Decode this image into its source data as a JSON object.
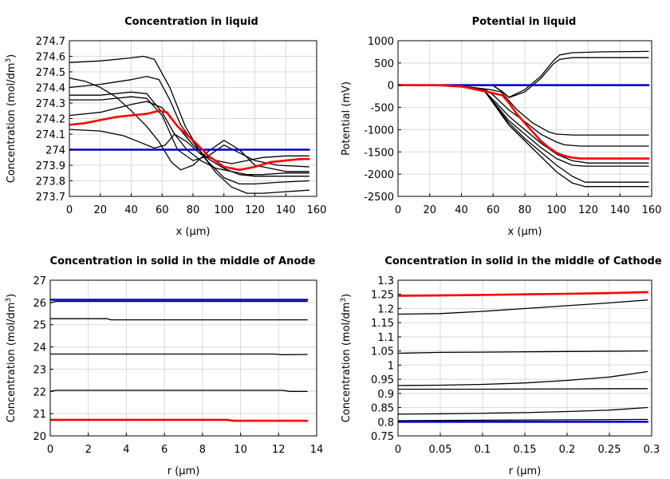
{
  "colors": {
    "initial": "#0000cc",
    "current": "#ff0000",
    "other": "#000000",
    "grid": "#d9d9d9"
  },
  "chart_data": [
    {
      "type": "line",
      "id": "liquid-conc",
      "title": "Concentration in liquid",
      "xlabel": "x (µm)",
      "ylabel_main": "Concentration (mol/dm",
      "ylabel_sup": "3",
      "ylabel_end": ")",
      "xlim": [
        0,
        160
      ],
      "ylim": [
        273.7,
        274.7
      ],
      "xticks": [
        0,
        20,
        40,
        60,
        80,
        100,
        120,
        140,
        160
      ],
      "xtick_labels": [
        "0",
        "20",
        "40",
        "60",
        "80",
        "100",
        "120",
        "140",
        "160"
      ],
      "yticks": [
        273.7,
        273.8,
        273.9,
        274,
        274.1,
        274.2,
        274.3,
        274.4,
        274.5,
        274.6,
        274.7
      ],
      "ytick_labels": [
        "273.7",
        "273.8",
        "273.9",
        "274",
        "274.1",
        "274.2",
        "274.3",
        "274.4",
        "274.5",
        "274.6",
        "274.7"
      ],
      "series": [
        {
          "role": "initial",
          "x": [
            0,
            155
          ],
          "y": [
            274.0,
            274.0
          ]
        },
        {
          "role": "other",
          "x": [
            0,
            20,
            40,
            48,
            55,
            65,
            75,
            85,
            95,
            105,
            115,
            125,
            140,
            155
          ],
          "y": [
            274.56,
            274.57,
            274.59,
            274.6,
            274.58,
            274.4,
            274.15,
            273.98,
            273.85,
            273.76,
            273.72,
            273.72,
            273.73,
            273.74
          ]
        },
        {
          "role": "other",
          "x": [
            0,
            20,
            40,
            50,
            58,
            65,
            72,
            80,
            90,
            100,
            110,
            120,
            135,
            155
          ],
          "y": [
            274.4,
            274.42,
            274.45,
            274.47,
            274.45,
            274.32,
            274.16,
            274.05,
            273.92,
            273.82,
            273.78,
            273.78,
            273.79,
            273.8
          ]
        },
        {
          "role": "other",
          "x": [
            0,
            10,
            20,
            30,
            40,
            50,
            58,
            66,
            72,
            80,
            90,
            100,
            110,
            120,
            140,
            155
          ],
          "y": [
            274.46,
            274.44,
            274.4,
            274.34,
            274.25,
            274.15,
            274.05,
            273.92,
            273.87,
            273.9,
            273.99,
            274.06,
            274.0,
            273.9,
            273.86,
            273.86
          ]
        },
        {
          "role": "other",
          "x": [
            0,
            20,
            40,
            50,
            60,
            70,
            80,
            90,
            100,
            110,
            120,
            135,
            155
          ],
          "y": [
            274.32,
            274.32,
            274.34,
            274.33,
            274.22,
            274.0,
            273.93,
            273.96,
            274.03,
            273.98,
            273.93,
            273.9,
            273.89
          ]
        },
        {
          "role": "other",
          "x": [
            0,
            20,
            40,
            50,
            60,
            68,
            76,
            85,
            95,
            105,
            115,
            125,
            140,
            155
          ],
          "y": [
            274.35,
            274.35,
            274.37,
            274.36,
            274.24,
            274.1,
            274.0,
            273.93,
            273.88,
            273.86,
            273.84,
            273.84,
            273.85,
            273.85
          ]
        },
        {
          "role": "other",
          "x": [
            0,
            20,
            35,
            45,
            55,
            62,
            68,
            76,
            85,
            95,
            105,
            115,
            125,
            140,
            155
          ],
          "y": [
            274.13,
            274.12,
            274.09,
            274.05,
            274.01,
            274.03,
            274.1,
            274.05,
            273.97,
            273.93,
            273.91,
            273.93,
            273.95,
            273.96,
            273.96
          ]
        },
        {
          "role": "other",
          "x": [
            0,
            20,
            40,
            50,
            60,
            70,
            80,
            90,
            100,
            110,
            120,
            135,
            155
          ],
          "y": [
            274.22,
            274.24,
            274.29,
            274.31,
            274.27,
            274.15,
            274.03,
            273.94,
            273.88,
            273.84,
            273.83,
            273.83,
            273.83
          ]
        },
        {
          "role": "current",
          "x": [
            0,
            10,
            20,
            30,
            40,
            50,
            58,
            63,
            70,
            80,
            90,
            100,
            110,
            120,
            130,
            140,
            150,
            155
          ],
          "y": [
            274.16,
            274.17,
            274.19,
            274.21,
            274.22,
            274.23,
            274.25,
            274.24,
            274.15,
            274.06,
            273.96,
            273.89,
            273.87,
            273.89,
            273.92,
            273.93,
            273.94,
            273.94
          ]
        }
      ]
    },
    {
      "type": "line",
      "id": "liquid-potential",
      "title": "Potential in liquid",
      "xlabel": "x (µm)",
      "ylabel_main": "Potential (mV)",
      "ylabel_sup": "",
      "ylabel_end": "",
      "xlim": [
        0,
        160
      ],
      "ylim": [
        -2500,
        1000
      ],
      "xticks": [
        0,
        20,
        40,
        60,
        80,
        100,
        120,
        140,
        160
      ],
      "xtick_labels": [
        "0",
        "20",
        "40",
        "60",
        "80",
        "100",
        "120",
        "140",
        "160"
      ],
      "yticks": [
        -2500,
        -2000,
        -1500,
        -1000,
        -500,
        0,
        500,
        1000
      ],
      "ytick_labels": [
        "-2500",
        "-2000",
        "-1500",
        "-1000",
        "-500",
        "0",
        "500",
        "1000"
      ],
      "series": [
        {
          "role": "initial",
          "x": [
            0,
            158
          ],
          "y": [
            0,
            0
          ]
        },
        {
          "role": "other",
          "x": [
            0,
            60,
            66,
            70,
            80,
            90,
            98,
            102,
            110,
            130,
            158
          ],
          "y": [
            0,
            -10,
            -150,
            -270,
            -100,
            200,
            550,
            680,
            730,
            750,
            760
          ]
        },
        {
          "role": "other",
          "x": [
            0,
            60,
            66,
            70,
            80,
            90,
            98,
            102,
            110,
            130,
            158
          ],
          "y": [
            0,
            -10,
            -150,
            -280,
            -150,
            150,
            480,
            580,
            620,
            620,
            620
          ]
        },
        {
          "role": "other",
          "x": [
            0,
            25,
            45,
            58,
            65,
            75,
            85,
            95,
            100,
            110,
            125,
            158
          ],
          "y": [
            0,
            0,
            -40,
            -100,
            -150,
            -550,
            -850,
            -1050,
            -1100,
            -1120,
            -1120,
            -1120
          ]
        },
        {
          "role": "other",
          "x": [
            0,
            25,
            45,
            55,
            60,
            70,
            80,
            90,
            100,
            105,
            115,
            125,
            158
          ],
          "y": [
            0,
            0,
            -50,
            -100,
            -220,
            -560,
            -820,
            -1100,
            -1280,
            -1340,
            -1370,
            -1370,
            -1370
          ]
        },
        {
          "role": "other",
          "x": [
            0,
            25,
            40,
            55,
            62,
            70,
            80,
            90,
            100,
            110,
            120,
            158
          ],
          "y": [
            0,
            0,
            -30,
            -150,
            -400,
            -700,
            -1000,
            -1300,
            -1550,
            -1700,
            -1750,
            -1750
          ]
        },
        {
          "role": "other",
          "x": [
            0,
            25,
            40,
            55,
            62,
            70,
            80,
            90,
            100,
            110,
            118,
            158
          ],
          "y": [
            0,
            0,
            -30,
            -150,
            -450,
            -800,
            -1100,
            -1400,
            -1650,
            -1800,
            -1820,
            -1820
          ]
        },
        {
          "role": "other",
          "x": [
            0,
            25,
            40,
            55,
            62,
            70,
            80,
            90,
            100,
            110,
            118,
            158
          ],
          "y": [
            0,
            0,
            -30,
            -150,
            -480,
            -850,
            -1200,
            -1500,
            -1800,
            -2050,
            -2180,
            -2180
          ]
        },
        {
          "role": "other",
          "x": [
            0,
            25,
            40,
            55,
            62,
            70,
            80,
            90,
            100,
            110,
            118,
            158
          ],
          "y": [
            0,
            0,
            -30,
            -150,
            -500,
            -900,
            -1250,
            -1600,
            -1950,
            -2200,
            -2280,
            -2280
          ]
        },
        {
          "role": "current",
          "x": [
            0,
            25,
            40,
            50,
            60,
            66,
            70,
            75,
            80,
            85,
            90,
            95,
            100,
            105,
            110,
            115,
            120,
            158
          ],
          "y": [
            0,
            0,
            -30,
            -100,
            -180,
            -230,
            -400,
            -650,
            -850,
            -1050,
            -1250,
            -1400,
            -1520,
            -1590,
            -1630,
            -1650,
            -1650,
            -1650
          ]
        }
      ]
    },
    {
      "type": "line",
      "id": "solid-anode",
      "title": "Concentration in solid in the middle of Anode",
      "xlabel": "r (µm)",
      "ylabel_main": "Concentration (mol/dm",
      "ylabel_sup": "3",
      "ylabel_end": ")",
      "xlim": [
        0,
        14
      ],
      "ylim": [
        20,
        27
      ],
      "xticks": [
        0,
        2,
        4,
        6,
        8,
        10,
        12,
        14
      ],
      "xtick_labels": [
        "0",
        "2",
        "4",
        "6",
        "8",
        "10",
        "12",
        "14"
      ],
      "yticks": [
        20,
        21,
        22,
        23,
        24,
        25,
        26,
        27
      ],
      "ytick_labels": [
        "20",
        "21",
        "22",
        "23",
        "24",
        "25",
        "26",
        "27"
      ],
      "series": [
        {
          "role": "initial",
          "x": [
            0,
            13.5
          ],
          "y": [
            26.12,
            26.12
          ]
        },
        {
          "role": "other",
          "x": [
            0,
            0.3,
            13.5
          ],
          "y": [
            25.98,
            26.05,
            26.05
          ]
        },
        {
          "role": "other",
          "x": [
            0,
            3,
            3.2,
            13.5
          ],
          "y": [
            25.27,
            25.27,
            25.22,
            25.22
          ]
        },
        {
          "role": "other",
          "x": [
            0,
            11.8,
            12.2,
            13.5
          ],
          "y": [
            23.68,
            23.68,
            23.65,
            23.66
          ]
        },
        {
          "role": "other",
          "x": [
            0,
            0.3,
            12.2,
            12.6,
            13.5
          ],
          "y": [
            22.0,
            22.05,
            22.05,
            22.0,
            22.0
          ]
        },
        {
          "role": "current",
          "x": [
            0,
            9.3,
            9.6,
            13.5
          ],
          "y": [
            20.72,
            20.72,
            20.68,
            20.68
          ]
        }
      ]
    },
    {
      "type": "line",
      "id": "solid-cathode",
      "title": "Concentration in solid in the middle of Cathode",
      "xlabel": "r (µm)",
      "ylabel_main": "Concentration (mol/dm",
      "ylabel_sup": "3",
      "ylabel_end": ")",
      "xlim": [
        0,
        0.3
      ],
      "ylim": [
        0.75,
        1.3
      ],
      "xticks": [
        0,
        0.05,
        0.1,
        0.15,
        0.2,
        0.25,
        0.3
      ],
      "xtick_labels": [
        "0",
        "0.05",
        "0.1",
        "0.15",
        "0.2",
        "0.25",
        "0.3"
      ],
      "yticks": [
        0.75,
        0.8,
        0.85,
        0.9,
        0.95,
        1.0,
        1.05,
        1.1,
        1.15,
        1.2,
        1.25,
        1.3
      ],
      "ytick_labels": [
        "0.75",
        "0.8",
        "0.85",
        "0.9",
        "0.95",
        "1",
        "1.05",
        "1.1",
        "1.15",
        "1.2",
        "1.25",
        "1.3"
      ],
      "series": [
        {
          "role": "initial",
          "x": [
            0,
            0.295
          ],
          "y": [
            0.8,
            0.8
          ]
        },
        {
          "role": "other",
          "x": [
            0,
            0.14,
            0.295
          ],
          "y": [
            0.804,
            0.806,
            0.808
          ]
        },
        {
          "role": "other",
          "x": [
            0,
            0.05,
            0.1,
            0.15,
            0.2,
            0.25,
            0.295
          ],
          "y": [
            0.827,
            0.828,
            0.83,
            0.832,
            0.836,
            0.841,
            0.85
          ]
        },
        {
          "role": "other",
          "x": [
            0,
            0.1,
            0.2,
            0.295
          ],
          "y": [
            0.915,
            0.915,
            0.916,
            0.917
          ]
        },
        {
          "role": "other",
          "x": [
            0,
            0.05,
            0.1,
            0.15,
            0.2,
            0.25,
            0.295
          ],
          "y": [
            0.928,
            0.929,
            0.932,
            0.937,
            0.946,
            0.958,
            0.977
          ]
        },
        {
          "role": "other",
          "x": [
            0,
            0.05,
            0.1,
            0.2,
            0.295
          ],
          "y": [
            1.042,
            1.045,
            1.046,
            1.048,
            1.05
          ]
        },
        {
          "role": "other",
          "x": [
            0,
            0.05,
            0.1,
            0.15,
            0.2,
            0.25,
            0.295
          ],
          "y": [
            1.18,
            1.182,
            1.19,
            1.2,
            1.21,
            1.22,
            1.23
          ]
        },
        {
          "role": "current",
          "x": [
            0,
            0.05,
            0.1,
            0.15,
            0.2,
            0.25,
            0.295
          ],
          "y": [
            1.245,
            1.246,
            1.248,
            1.25,
            1.252,
            1.255,
            1.258
          ]
        }
      ]
    }
  ]
}
